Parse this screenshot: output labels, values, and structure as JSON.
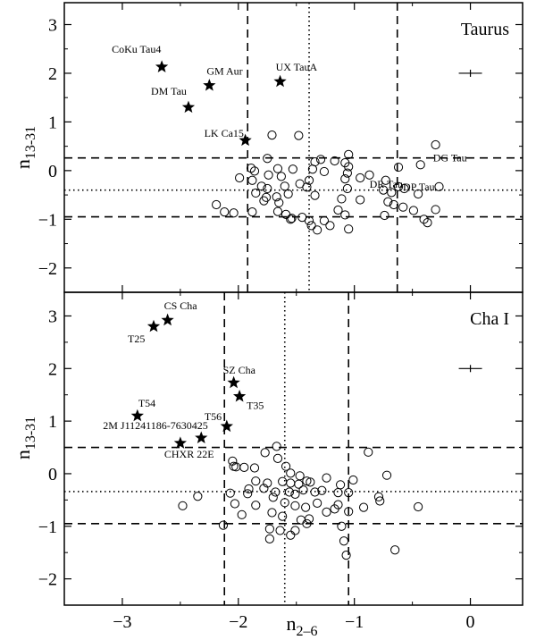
{
  "chart_data": [
    {
      "type": "scatter",
      "panel_label": "Taurus",
      "xlabel": "n",
      "xlabel_sub": "2–6",
      "ylabel": "n",
      "ylabel_sub": "13-31",
      "xlim": [
        -3.5,
        0.45
      ],
      "ylim": [
        -2.5,
        3.45
      ],
      "x_ticks": [
        -3,
        -2,
        -1,
        0
      ],
      "x_tick_labels": [
        "−3",
        "−2",
        "−1",
        "0"
      ],
      "y_ticks": [
        -2,
        -1,
        0,
        1,
        2,
        3
      ],
      "y_tick_labels": [
        "−2",
        "−1",
        "0",
        "1",
        "2",
        "3"
      ],
      "show_x_tick_labels": false,
      "grid": false,
      "lines": {
        "vertical_dashed": [
          -1.92,
          -0.63
        ],
        "vertical_dotted": -1.39,
        "horizontal_dashed": [
          0.26,
          -0.95
        ],
        "horizontal_dotted": -0.4
      },
      "error_bar": {
        "x": 0.0,
        "y": 2.0,
        "xerr": 0.1
      },
      "series": [
        {
          "marker": "star",
          "points": [
            {
              "x": -2.66,
              "y": 2.13,
              "label": "CoKu Tau4"
            },
            {
              "x": -2.25,
              "y": 1.75,
              "label": "GM Aur"
            },
            {
              "x": -1.64,
              "y": 1.83,
              "label": "UX TauA"
            },
            {
              "x": -2.43,
              "y": 1.3,
              "label": "DM Tau"
            },
            {
              "x": -1.94,
              "y": 0.62,
              "label": "LK Ca15"
            }
          ]
        },
        {
          "marker": "open-circle",
          "labeled_points": [
            {
              "x": -0.43,
              "y": 0.12,
              "label": "DG Tau"
            },
            {
              "x": -0.87,
              "y": -0.09,
              "label": "DR Tau"
            },
            {
              "x": -0.62,
              "y": -0.33,
              "label": "DP Tau"
            }
          ],
          "points": [
            [
              -1.71,
              0.73
            ],
            [
              -1.48,
              0.72
            ],
            [
              -0.3,
              0.53
            ],
            [
              -1.05,
              0.33
            ],
            [
              -1.29,
              0.23
            ],
            [
              -1.17,
              0.2
            ],
            [
              -1.75,
              0.25
            ],
            [
              -1.08,
              0.16
            ],
            [
              -1.34,
              0.18
            ],
            [
              -1.05,
              0.08
            ],
            [
              -0.62,
              0.07
            ],
            [
              -1.89,
              0.05
            ],
            [
              -1.86,
              -0.01
            ],
            [
              -1.66,
              0.04
            ],
            [
              -1.53,
              0.03
            ],
            [
              -1.36,
              0.03
            ],
            [
              -1.26,
              -0.02
            ],
            [
              -1.06,
              -0.05
            ],
            [
              -1.74,
              -0.09
            ],
            [
              -1.63,
              -0.12
            ],
            [
              -1.99,
              -0.15
            ],
            [
              -1.88,
              -0.2
            ],
            [
              -1.39,
              -0.2
            ],
            [
              -1.08,
              -0.17
            ],
            [
              -0.95,
              -0.15
            ],
            [
              -1.47,
              -0.27
            ],
            [
              -0.73,
              -0.2
            ],
            [
              -0.27,
              -0.33
            ],
            [
              -1.8,
              -0.32
            ],
            [
              -1.75,
              -0.37
            ],
            [
              -1.6,
              -0.32
            ],
            [
              -1.41,
              -0.34
            ],
            [
              -1.06,
              -0.37
            ],
            [
              -0.57,
              -0.37
            ],
            [
              -1.85,
              -0.46
            ],
            [
              -1.76,
              -0.55
            ],
            [
              -1.67,
              -0.54
            ],
            [
              -1.57,
              -0.48
            ],
            [
              -1.34,
              -0.51
            ],
            [
              -0.75,
              -0.4
            ],
            [
              -0.68,
              -0.45
            ],
            [
              -0.45,
              -0.48
            ],
            [
              -1.78,
              -0.62
            ],
            [
              -1.65,
              -0.66
            ],
            [
              -1.11,
              -0.58
            ],
            [
              -0.95,
              -0.6
            ],
            [
              -0.71,
              -0.64
            ],
            [
              -0.66,
              -0.7
            ],
            [
              -0.58,
              -0.75
            ],
            [
              -0.49,
              -0.82
            ],
            [
              -0.3,
              -0.8
            ],
            [
              -2.19,
              -0.7
            ],
            [
              -2.12,
              -0.85
            ],
            [
              -2.04,
              -0.87
            ],
            [
              -1.88,
              -0.85
            ],
            [
              -1.66,
              -0.84
            ],
            [
              -1.59,
              -0.9
            ],
            [
              -1.14,
              -0.81
            ],
            [
              -1.08,
              -0.91
            ],
            [
              -1.54,
              -0.98
            ],
            [
              -1.45,
              -0.96
            ],
            [
              -1.39,
              -1.03
            ],
            [
              -1.55,
              -1.0
            ],
            [
              -1.26,
              -1.03
            ],
            [
              -0.74,
              -0.92
            ],
            [
              -0.4,
              -1.0
            ],
            [
              -0.37,
              -1.07
            ],
            [
              -1.21,
              -1.13
            ],
            [
              -1.37,
              -1.13
            ],
            [
              -1.32,
              -1.22
            ],
            [
              -1.05,
              -1.2
            ]
          ]
        }
      ]
    },
    {
      "type": "scatter",
      "panel_label": "Cha I",
      "xlabel": "n",
      "xlabel_sub": "2–6",
      "ylabel": "n",
      "ylabel_sub": "13-31",
      "xlim": [
        -3.5,
        0.45
      ],
      "ylim": [
        -2.5,
        3.45
      ],
      "x_ticks": [
        -3,
        -2,
        -1,
        0
      ],
      "x_tick_labels": [
        "−3",
        "−2",
        "−1",
        "0"
      ],
      "y_ticks": [
        -2,
        -1,
        0,
        1,
        2,
        3
      ],
      "y_tick_labels": [
        "−2",
        "−1",
        "0",
        "1",
        "2",
        "3"
      ],
      "show_x_tick_labels": true,
      "grid": false,
      "lines": {
        "vertical_dashed": [
          -2.12,
          -1.05
        ],
        "vertical_dotted": -1.6,
        "horizontal_dashed": [
          0.5,
          -0.95
        ],
        "horizontal_dotted": -0.34
      },
      "error_bar": {
        "x": 0.0,
        "y": 2.0,
        "xerr": 0.1
      },
      "series": [
        {
          "marker": "star",
          "points": [
            {
              "x": -2.61,
              "y": 2.92,
              "label": "CS Cha"
            },
            {
              "x": -2.73,
              "y": 2.8,
              "label": "T25"
            },
            {
              "x": -2.04,
              "y": 1.73,
              "label": "SZ Cha"
            },
            {
              "x": -1.99,
              "y": 1.47,
              "label": "T35"
            },
            {
              "x": -2.87,
              "y": 1.1,
              "label": "T54"
            },
            {
              "x": -2.1,
              "y": 0.9,
              "label": "T56"
            },
            {
              "x": -2.32,
              "y": 0.68,
              "label": "2M J11241186-7630425"
            },
            {
              "x": -2.5,
              "y": 0.58,
              "label": "CHXR 22E"
            }
          ]
        },
        {
          "marker": "open-circle",
          "points": [
            [
              -1.67,
              0.52
            ],
            [
              -0.88,
              0.41
            ],
            [
              -1.77,
              0.4
            ],
            [
              -1.66,
              0.29
            ],
            [
              -2.05,
              0.24
            ],
            [
              -2.04,
              0.14
            ],
            [
              -1.95,
              0.12
            ],
            [
              -1.59,
              0.14
            ],
            [
              -1.55,
              0.01
            ],
            [
              -2.02,
              0.13
            ],
            [
              -1.86,
              0.11
            ],
            [
              -0.72,
              -0.03
            ],
            [
              -1.85,
              -0.14
            ],
            [
              -1.47,
              -0.04
            ],
            [
              -1.41,
              -0.14
            ],
            [
              -1.75,
              -0.18
            ],
            [
              -1.62,
              -0.15
            ],
            [
              -1.55,
              -0.18
            ],
            [
              -1.48,
              -0.2
            ],
            [
              -1.38,
              -0.16
            ],
            [
              -1.24,
              -0.08
            ],
            [
              -1.12,
              -0.21
            ],
            [
              -1.01,
              -0.12
            ],
            [
              -1.91,
              -0.29
            ],
            [
              -1.78,
              -0.28
            ],
            [
              -1.68,
              -0.35
            ],
            [
              -1.56,
              -0.35
            ],
            [
              -1.51,
              -0.39
            ],
            [
              -1.44,
              -0.31
            ],
            [
              -1.34,
              -0.35
            ],
            [
              -1.28,
              -0.32
            ],
            [
              -1.14,
              -0.36
            ],
            [
              -1.05,
              -0.36
            ],
            [
              -2.07,
              -0.37
            ],
            [
              -1.92,
              -0.38
            ],
            [
              -1.7,
              -0.45
            ],
            [
              -2.35,
              -0.43
            ],
            [
              -2.03,
              -0.57
            ],
            [
              -1.85,
              -0.6
            ],
            [
              -1.6,
              -0.55
            ],
            [
              -1.51,
              -0.61
            ],
            [
              -1.42,
              -0.64
            ],
            [
              -1.32,
              -0.56
            ],
            [
              -1.14,
              -0.59
            ],
            [
              -1.05,
              -0.72
            ],
            [
              -0.79,
              -0.44
            ],
            [
              -0.78,
              -0.52
            ],
            [
              -0.45,
              -0.63
            ],
            [
              -1.97,
              -0.78
            ],
            [
              -1.71,
              -0.74
            ],
            [
              -1.62,
              -0.81
            ],
            [
              -1.39,
              -0.86
            ],
            [
              -1.24,
              -0.73
            ],
            [
              -1.17,
              -0.67
            ],
            [
              -0.92,
              -0.64
            ],
            [
              -2.48,
              -0.61
            ],
            [
              -2.13,
              -0.98
            ],
            [
              -1.73,
              -1.05
            ],
            [
              -1.64,
              -1.08
            ],
            [
              -1.46,
              -0.88
            ],
            [
              -1.41,
              -0.95
            ],
            [
              -1.55,
              -1.17
            ],
            [
              -1.51,
              -1.08
            ],
            [
              -1.11,
              -1.0
            ],
            [
              -1.09,
              -1.28
            ],
            [
              -1.73,
              -1.24
            ],
            [
              -0.65,
              -1.45
            ],
            [
              -1.07,
              -1.55
            ]
          ]
        }
      ]
    }
  ]
}
